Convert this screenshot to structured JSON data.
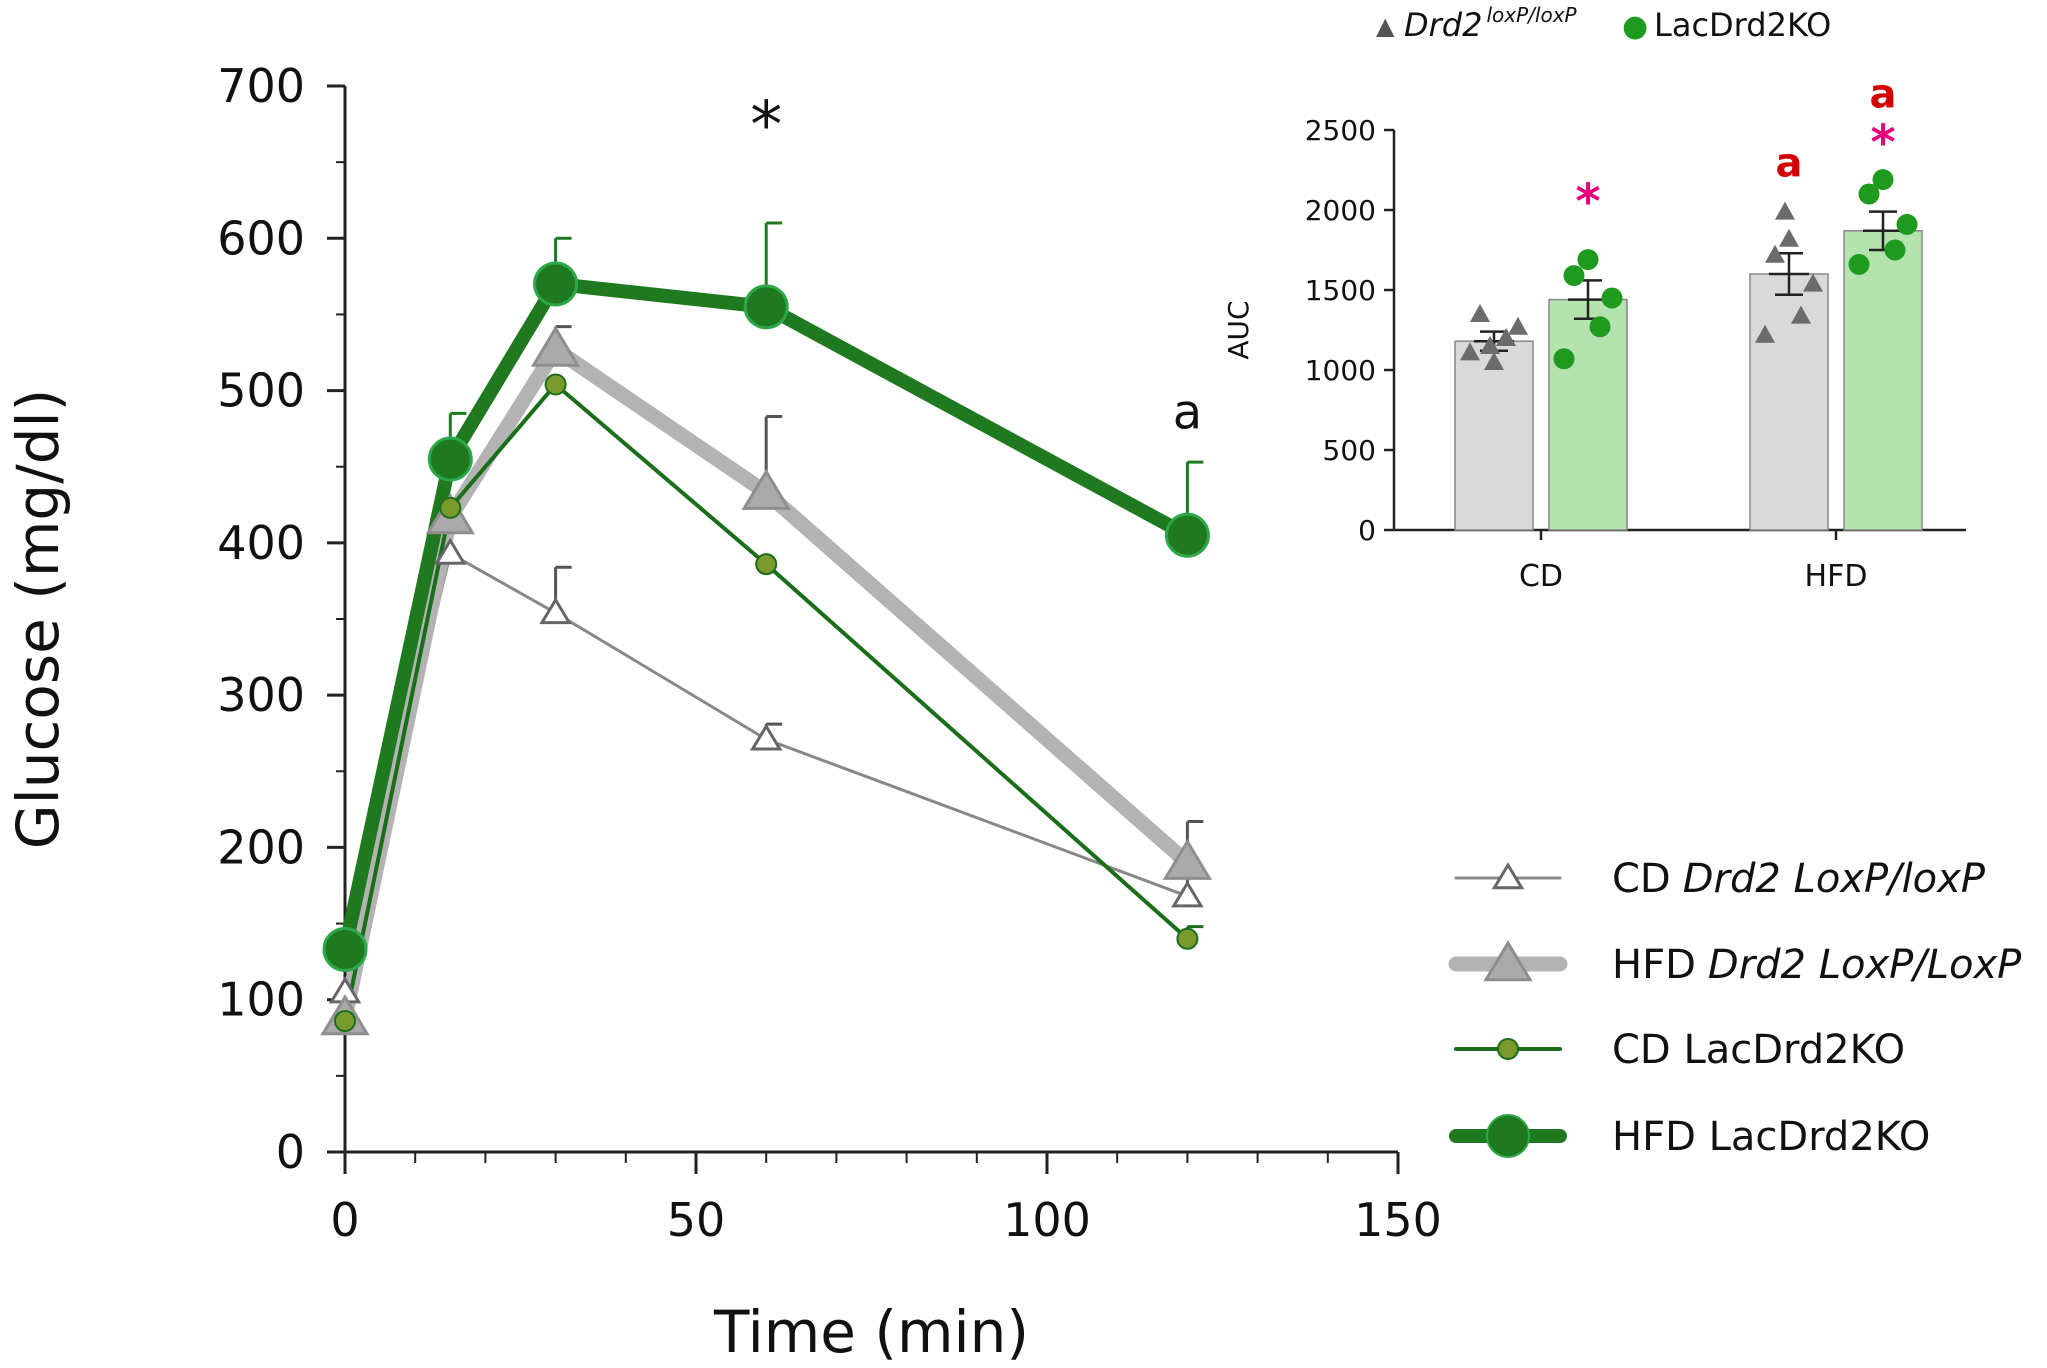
{
  "chart_data": [
    {
      "type": "line",
      "xlabel": "Time (min)",
      "ylabel": "Glucose (mg/dl)",
      "xlim": [
        0,
        150
      ],
      "ylim": [
        0,
        700
      ],
      "xticks": [
        0,
        50,
        100,
        150
      ],
      "yticks": [
        0,
        100,
        200,
        300,
        400,
        500,
        600,
        700
      ],
      "x": [
        0,
        15,
        30,
        60,
        120
      ],
      "series": [
        {
          "name": "CD",
          "name_italic": "Drd2 LoxP/loxP",
          "values": [
            105,
            393,
            354,
            271,
            168
          ],
          "errors": [
            0,
            0,
            30,
            10,
            12
          ],
          "color": "#888888",
          "marker": "triangle-open",
          "weight": "thin"
        },
        {
          "name": "HFD",
          "name_italic": "Drd2 LoxP/LoxP",
          "values": [
            88,
            417,
            527,
            433,
            190
          ],
          "errors": [
            0,
            0,
            15,
            50,
            27
          ],
          "color": "#b3b3b3",
          "marker": "triangle-filled",
          "weight": "thick"
        },
        {
          "name": "CD LacDrd2KO",
          "name_italic": "",
          "values": [
            86,
            423,
            504,
            386,
            140
          ],
          "errors": [
            0,
            0,
            0,
            0,
            8
          ],
          "color": "#1a6e1a",
          "marker": "circle-small",
          "weight": "thin"
        },
        {
          "name": "HFD LacDrd2KO",
          "name_italic": "",
          "values": [
            133,
            455,
            570,
            555,
            405
          ],
          "errors": [
            0,
            30,
            30,
            55,
            48
          ],
          "color": "#1f7a1f",
          "marker": "circle-large",
          "weight": "thick"
        }
      ],
      "annotations": [
        {
          "text": "*",
          "x": 60,
          "y": 660
        },
        {
          "text": "a",
          "x": 120,
          "y": 475
        }
      ]
    },
    {
      "type": "bar",
      "ylabel": "AUC",
      "ylim": [
        0,
        2500
      ],
      "yticks": [
        0,
        500,
        1000,
        1500,
        2000,
        2500
      ],
      "categories": [
        "CD",
        "HFD"
      ],
      "legend": [
        {
          "label_italic": "Drd2",
          "label_sup": "loxP/loxP",
          "marker": "▲",
          "color": "#555555"
        },
        {
          "label": "LacDrd2KO",
          "marker": "●",
          "color": "#1e9a1e"
        }
      ],
      "series": [
        {
          "name": "Drd2 loxP/loxP",
          "values": [
            1180,
            1600
          ],
          "errors": [
            60,
            130
          ],
          "fill": "#d9d9d9",
          "point_color": "#6b6b6b",
          "points": [
            [
              1110,
              1200,
              1270,
              1350,
              1050,
              1150
            ],
            [
              1220,
              1340,
              1540,
              1720,
              1820,
              1990
            ]
          ]
        },
        {
          "name": "LacDrd2KO",
          "values": [
            1440,
            1870
          ],
          "errors": [
            120,
            120
          ],
          "fill": "#b5e3b0",
          "point_color": "#1e9a1e",
          "points": [
            [
              1070,
              1270,
              1450,
              1590,
              1690
            ],
            [
              1660,
              1750,
              1910,
              2100,
              2190
            ]
          ]
        }
      ],
      "annotations": [
        {
          "text": "*",
          "category": "CD",
          "series": 1,
          "y": 1950,
          "color": "#e4007c"
        },
        {
          "text": "a",
          "category": "HFD",
          "series": 0,
          "y": 2210,
          "color": "#d40000"
        },
        {
          "text": "*",
          "category": "HFD",
          "series": 1,
          "y": 2320,
          "color": "#e4007c"
        },
        {
          "text": "a",
          "category": "HFD",
          "series": 1,
          "y": 2640,
          "color": "#d40000"
        }
      ]
    }
  ]
}
